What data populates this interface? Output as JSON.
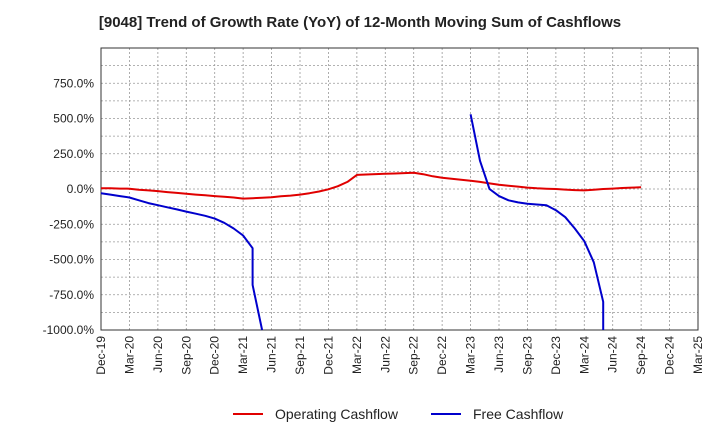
{
  "chart_data": {
    "type": "line",
    "title": "[9048]  Trend of Growth Rate (YoY) of 12-Month Moving Sum of Cashflows",
    "xlabel": "",
    "ylabel": "",
    "ylim": [
      -1000,
      1000
    ],
    "yticks": [
      750,
      500,
      250,
      0,
      -250,
      -500,
      -750,
      -1000
    ],
    "ytick_labels": [
      "750.0%",
      "500.0%",
      "250.0%",
      "0.0%",
      "-250.0%",
      "-500.0%",
      "-750.0%",
      "-1000.0%"
    ],
    "x_tick_labels": [
      "Dec-19",
      "Mar-20",
      "Jun-20",
      "Sep-20",
      "Dec-20",
      "Mar-21",
      "Jun-21",
      "Sep-21",
      "Dec-21",
      "Mar-22",
      "Jun-22",
      "Sep-22",
      "Dec-22",
      "Mar-23",
      "Jun-23",
      "Sep-23",
      "Dec-23",
      "Mar-24",
      "Jun-24",
      "Sep-24",
      "Dec-24",
      "Mar-25"
    ],
    "grid": true,
    "legend_position": "bottom",
    "series": [
      {
        "name": "Operating Cashflow",
        "color": "#e00000",
        "points": [
          [
            "Dec-19",
            5
          ],
          [
            "Jan-20",
            5
          ],
          [
            "Feb-20",
            3
          ],
          [
            "Mar-20",
            2
          ],
          [
            "Apr-20",
            -5
          ],
          [
            "May-20",
            -10
          ],
          [
            "Jun-20",
            -15
          ],
          [
            "Jul-20",
            -22
          ],
          [
            "Aug-20",
            -28
          ],
          [
            "Sep-20",
            -33
          ],
          [
            "Oct-20",
            -40
          ],
          [
            "Nov-20",
            -45
          ],
          [
            "Dec-20",
            -50
          ],
          [
            "Jan-21",
            -55
          ],
          [
            "Feb-21",
            -60
          ],
          [
            "Mar-21",
            -68
          ],
          [
            "Apr-21",
            -65
          ],
          [
            "May-21",
            -62
          ],
          [
            "Jun-21",
            -58
          ],
          [
            "Jul-21",
            -52
          ],
          [
            "Aug-21",
            -47
          ],
          [
            "Sep-21",
            -40
          ],
          [
            "Oct-21",
            -30
          ],
          [
            "Nov-21",
            -18
          ],
          [
            "Dec-21",
            -2
          ],
          [
            "Jan-22",
            20
          ],
          [
            "Feb-22",
            50
          ],
          [
            "Mar-22",
            100
          ],
          [
            "Apr-22",
            103
          ],
          [
            "May-22",
            106
          ],
          [
            "Jun-22",
            108
          ],
          [
            "Jul-22",
            110
          ],
          [
            "Aug-22",
            113
          ],
          [
            "Sep-22",
            115
          ],
          [
            "Oct-22",
            105
          ],
          [
            "Nov-22",
            90
          ],
          [
            "Dec-22",
            80
          ],
          [
            "Jan-23",
            72
          ],
          [
            "Feb-23",
            65
          ],
          [
            "Mar-23",
            58
          ],
          [
            "Apr-23",
            50
          ],
          [
            "May-23",
            40
          ],
          [
            "Jun-23",
            30
          ],
          [
            "Jul-23",
            23
          ],
          [
            "Aug-23",
            17
          ],
          [
            "Sep-23",
            10
          ],
          [
            "Oct-23",
            5
          ],
          [
            "Nov-23",
            2
          ],
          [
            "Dec-23",
            0
          ],
          [
            "Jan-24",
            -4
          ],
          [
            "Feb-24",
            -8
          ],
          [
            "Mar-24",
            -10
          ],
          [
            "Apr-24",
            -5
          ],
          [
            "May-24",
            0
          ],
          [
            "Jun-24",
            3
          ],
          [
            "Jul-24",
            7
          ],
          [
            "Aug-24",
            10
          ],
          [
            "Sep-24",
            12
          ]
        ]
      },
      {
        "name": "Free Cashflow",
        "color": "#0000cc",
        "points": [
          [
            "Dec-19",
            -30
          ],
          [
            "Jan-20",
            -40
          ],
          [
            "Feb-20",
            -50
          ],
          [
            "Mar-20",
            -60
          ],
          [
            "Apr-20",
            -80
          ],
          [
            "May-20",
            -100
          ],
          [
            "Jun-20",
            -115
          ],
          [
            "Jul-20",
            -130
          ],
          [
            "Aug-20",
            -145
          ],
          [
            "Sep-20",
            -160
          ],
          [
            "Oct-20",
            -175
          ],
          [
            "Nov-20",
            -190
          ],
          [
            "Dec-20",
            -210
          ],
          [
            "Jan-21",
            -240
          ],
          [
            "Feb-21",
            -280
          ],
          [
            "Mar-21",
            -330
          ],
          [
            "Apr-21",
            -420
          ],
          [
            "Apr-21",
            -680
          ],
          [
            "May-21",
            -1000
          ]
        ]
      },
      {
        "name": "Free Cashflow",
        "color": "#0000cc",
        "points": [
          [
            "Mar-23",
            530
          ],
          [
            "Apr-23",
            200
          ],
          [
            "May-23",
            0
          ],
          [
            "Jun-23",
            -50
          ],
          [
            "Jul-23",
            -80
          ],
          [
            "Aug-23",
            -95
          ],
          [
            "Sep-23",
            -105
          ],
          [
            "Oct-23",
            -110
          ],
          [
            "Nov-23",
            -115
          ],
          [
            "Dec-23",
            -150
          ],
          [
            "Jan-24",
            -200
          ],
          [
            "Feb-24",
            -280
          ],
          [
            "Mar-24",
            -370
          ],
          [
            "Apr-24",
            -520
          ],
          [
            "May-24",
            -800
          ],
          [
            "May-24",
            -1000
          ]
        ]
      }
    ]
  }
}
